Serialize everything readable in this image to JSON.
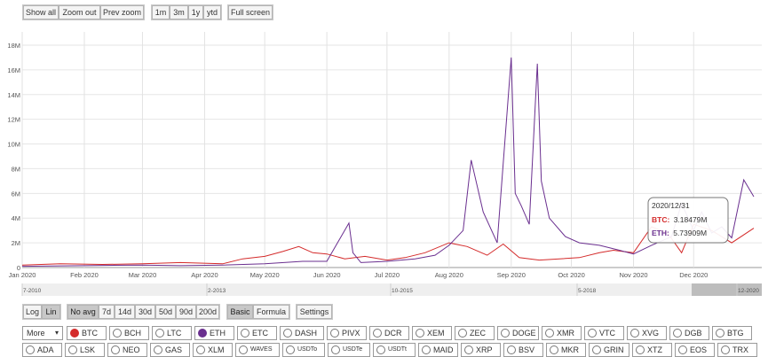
{
  "toolbar": {
    "show_all": "Show all",
    "zoom_out": "Zoom out",
    "prev_zoom": "Prev zoom",
    "range_1m": "1m",
    "range_3m": "3m",
    "range_1y": "1y",
    "range_ytd": "ytd",
    "full_screen": "Full screen"
  },
  "bottom_controls": {
    "scale": [
      "Log",
      "Lin"
    ],
    "scale_active": "Lin",
    "averages": [
      "No avg",
      "7d",
      "14d",
      "30d",
      "50d",
      "90d",
      "200d"
    ],
    "average_active": "No avg",
    "modes": [
      "Basic",
      "Formula"
    ],
    "mode_active": "Basic",
    "settings": "Settings",
    "more_select": "More"
  },
  "coins_row1": [
    "BTC",
    "BCH",
    "LTC",
    "ETH",
    "ETC",
    "DASH",
    "PIVX",
    "DCR",
    "XEM",
    "ZEC",
    "DOGE",
    "XMR",
    "VTC",
    "XVG",
    "DGB",
    "BTG"
  ],
  "coins_row2": [
    "ADA",
    "LSK",
    "NEO",
    "GAS",
    "XLM",
    "WAVES",
    "USDTo",
    "USDTe",
    "USDTt",
    "MAID",
    "XRP",
    "BSV",
    "MKR",
    "GRIN",
    "XTZ",
    "EOS",
    "TRX"
  ],
  "selected_coins": [
    "BTC",
    "ETH"
  ],
  "colors": {
    "btc": "#d42b2b",
    "eth": "#6a2f8f",
    "grid": "#e2e2e2"
  },
  "tooltip": {
    "date": "2020/12/31",
    "btc_label": "BTC:",
    "btc_value": "3.18479M",
    "eth_label": "ETH:",
    "eth_value": "5.73909M"
  },
  "navigator": {
    "labels": [
      "7-2010",
      "2-2013",
      "10-2015",
      "5-2018",
      "12-2020"
    ]
  },
  "chart_data": {
    "type": "line",
    "y_ticks": [
      "0",
      "2M",
      "4M",
      "6M",
      "8M",
      "10M",
      "12M",
      "14M",
      "16M",
      "18M"
    ],
    "x_ticks": [
      "Jan 2020",
      "Feb 2020",
      "Mar 2020",
      "Apr 2020",
      "May 2020",
      "Jun 2020",
      "Jul 2020",
      "Aug 2020",
      "Sep 2020",
      "Oct 2020",
      "Nov 2020",
      "Dec 2020"
    ],
    "xlim": [
      "2020-01-01",
      "2021-01-04"
    ],
    "ylim": [
      0,
      18500000
    ],
    "series": [
      {
        "name": "BTC",
        "x": [
          "2020-01-01",
          "2020-01-20",
          "2020-02-10",
          "2020-03-01",
          "2020-03-20",
          "2020-04-10",
          "2020-04-20",
          "2020-05-01",
          "2020-05-10",
          "2020-05-18",
          "2020-05-25",
          "2020-06-01",
          "2020-06-10",
          "2020-06-20",
          "2020-07-01",
          "2020-07-10",
          "2020-07-20",
          "2020-08-01",
          "2020-08-10",
          "2020-08-20",
          "2020-08-28",
          "2020-09-05",
          "2020-09-15",
          "2020-09-25",
          "2020-10-05",
          "2020-10-15",
          "2020-10-22",
          "2020-11-01",
          "2020-11-10",
          "2020-11-18",
          "2020-11-25",
          "2020-12-01",
          "2020-12-10",
          "2020-12-20",
          "2020-12-31"
        ],
        "values": [
          200000,
          300000,
          250000,
          300000,
          400000,
          300000,
          700000,
          900000,
          1300000,
          1700000,
          1200000,
          1100000,
          700000,
          900000,
          600000,
          800000,
          1200000,
          2000000,
          1700000,
          1000000,
          1900000,
          800000,
          600000,
          700000,
          800000,
          1200000,
          1400000,
          1200000,
          3300000,
          2800000,
          1200000,
          3500000,
          3000000,
          2000000,
          3184790
        ]
      },
      {
        "name": "ETH",
        "x": [
          "2020-01-01",
          "2020-02-01",
          "2020-03-01",
          "2020-03-20",
          "2020-04-10",
          "2020-05-01",
          "2020-05-20",
          "2020-06-01",
          "2020-06-12",
          "2020-06-14",
          "2020-06-18",
          "2020-07-01",
          "2020-07-15",
          "2020-07-25",
          "2020-08-01",
          "2020-08-08",
          "2020-08-12",
          "2020-08-18",
          "2020-08-25",
          "2020-09-01",
          "2020-09-03",
          "2020-09-06",
          "2020-09-10",
          "2020-09-14",
          "2020-09-16",
          "2020-09-20",
          "2020-09-28",
          "2020-10-05",
          "2020-10-15",
          "2020-10-25",
          "2020-11-01",
          "2020-11-10",
          "2020-11-20",
          "2020-11-25",
          "2020-12-01",
          "2020-12-05",
          "2020-12-10",
          "2020-12-15",
          "2020-12-20",
          "2020-12-26",
          "2020-12-31"
        ],
        "values": [
          100000,
          150000,
          200000,
          150000,
          200000,
          300000,
          500000,
          500000,
          3600000,
          1200000,
          400000,
          500000,
          700000,
          1000000,
          1800000,
          3000000,
          8700000,
          4500000,
          2000000,
          17000000,
          6000000,
          5000000,
          3500000,
          16500000,
          7000000,
          4000000,
          2500000,
          2000000,
          1800000,
          1400000,
          1100000,
          1800000,
          2500000,
          5200000,
          3000000,
          4500000,
          2800000,
          3300000,
          2400000,
          7100000,
          5739090
        ]
      }
    ]
  }
}
